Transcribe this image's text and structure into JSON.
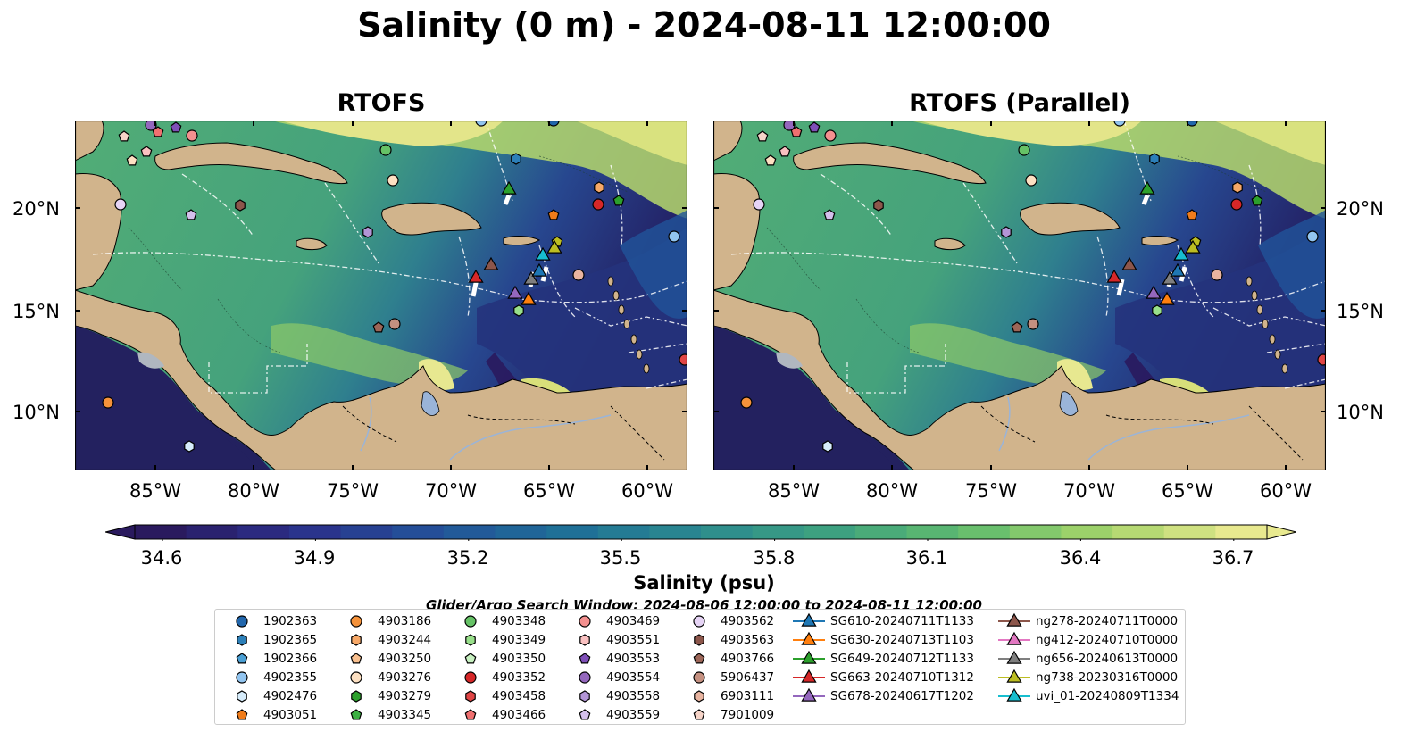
{
  "title": "Salinity (0 m) - 2024-08-11 12:00:00",
  "panels": [
    {
      "title": "RTOFS"
    },
    {
      "title": "RTOFS (Parallel)"
    }
  ],
  "axes": {
    "lat_labels": [
      "20°N",
      "15°N",
      "10°N"
    ],
    "lon_labels": [
      "85°W",
      "80°W",
      "75°W",
      "70°W",
      "65°W",
      "60°W"
    ]
  },
  "colorbar": {
    "label": "Salinity (psu)",
    "ticks": [
      "34.6",
      "34.9",
      "35.2",
      "35.5",
      "35.8",
      "36.1",
      "36.4",
      "36.7"
    ],
    "colors": [
      "#2a1a5e",
      "#2b2f8a",
      "#23519a",
      "#1e6f97",
      "#2b8a8f",
      "#3ea27f",
      "#63bd6d",
      "#a6d46a",
      "#e8e98f"
    ]
  },
  "search_window": "Glider/Argo Search Window: 2024-08-06 12:00:00 to 2024-08-11 12:00:00",
  "colors": {
    "ocean_mid": "#3e9a7c",
    "ocean_low": "#23215f",
    "ocean_high": "#e6e68a",
    "land": "#d1b48c",
    "river": "#9ab4d8"
  },
  "legend": {
    "columns": [
      [
        {
          "label": "1902363",
          "marker": "circle",
          "color": "#2166ac"
        },
        {
          "label": "1902365",
          "marker": "hexagon",
          "color": "#2c7fb8"
        },
        {
          "label": "1902366",
          "marker": "pentagon",
          "color": "#4a9fd4"
        },
        {
          "label": "4902355",
          "marker": "circle",
          "color": "#92c5f0"
        },
        {
          "label": "4902476",
          "marker": "hexagon",
          "color": "#d6ecfb"
        },
        {
          "label": "4903051",
          "marker": "pentagon",
          "color": "#f07c1a"
        }
      ],
      [
        {
          "label": "4903186",
          "marker": "circle",
          "color": "#f5923a"
        },
        {
          "label": "4903244",
          "marker": "hexagon",
          "color": "#f7a867"
        },
        {
          "label": "4903250",
          "marker": "pentagon",
          "color": "#f9c08f"
        },
        {
          "label": "4903276",
          "marker": "circle",
          "color": "#fde0c2"
        },
        {
          "label": "4903279",
          "marker": "hexagon",
          "color": "#2ca02c"
        },
        {
          "label": "4903345",
          "marker": "pentagon",
          "color": "#3cb043"
        }
      ],
      [
        {
          "label": "4903348",
          "marker": "circle",
          "color": "#66c266"
        },
        {
          "label": "4903349",
          "marker": "hexagon",
          "color": "#98df8a"
        },
        {
          "label": "4903350",
          "marker": "pentagon",
          "color": "#c7f0c0"
        },
        {
          "label": "4903352",
          "marker": "circle",
          "color": "#d62728"
        },
        {
          "label": "4903458",
          "marker": "hexagon",
          "color": "#e04545"
        },
        {
          "label": "4903466",
          "marker": "pentagon",
          "color": "#f07070"
        }
      ],
      [
        {
          "label": "4903469",
          "marker": "circle",
          "color": "#f4908f"
        },
        {
          "label": "4903551",
          "marker": "hexagon",
          "color": "#f9c0c0"
        },
        {
          "label": "4903553",
          "marker": "pentagon",
          "color": "#7f4fb8"
        },
        {
          "label": "4903554",
          "marker": "circle",
          "color": "#9467bd"
        },
        {
          "label": "4903558",
          "marker": "hexagon",
          "color": "#b395d6"
        },
        {
          "label": "4903559",
          "marker": "pentagon",
          "color": "#d4c0ec"
        }
      ],
      [
        {
          "label": "4903562",
          "marker": "circle",
          "color": "#e6d4f5"
        },
        {
          "label": "4903563",
          "marker": "hexagon",
          "color": "#8c564b"
        },
        {
          "label": "4903766",
          "marker": "pentagon",
          "color": "#9c6658"
        },
        {
          "label": "5906437",
          "marker": "circle",
          "color": "#c49080"
        },
        {
          "label": "6903111",
          "marker": "hexagon",
          "color": "#e8b4a0"
        },
        {
          "label": "7901009",
          "marker": "pentagon",
          "color": "#f6d4c8"
        }
      ],
      [
        {
          "label": "SG610-20240711T1133",
          "marker": "triangle",
          "color": "#1f77b4"
        },
        {
          "label": "SG630-20240713T1103",
          "marker": "triangle",
          "color": "#ff7f0e"
        },
        {
          "label": "SG649-20240712T1133",
          "marker": "triangle",
          "color": "#2ca02c"
        },
        {
          "label": "SG663-20240710T1312",
          "marker": "triangle",
          "color": "#d62728"
        },
        {
          "label": "SG678-20240617T1202",
          "marker": "triangle",
          "color": "#9467bd"
        }
      ],
      [
        {
          "label": "ng278-20240711T0000",
          "marker": "triangle",
          "color": "#8c564b"
        },
        {
          "label": "ng412-20240710T0000",
          "marker": "triangle",
          "color": "#e377c2"
        },
        {
          "label": "ng656-20240613T0000",
          "marker": "triangle",
          "color": "#7f7f7f"
        },
        {
          "label": "ng738-20230316T0000",
          "marker": "triangle",
          "color": "#bcbd22"
        },
        {
          "label": "uvi_01-20240809T1334",
          "marker": "triangle",
          "color": "#17becf"
        }
      ]
    ]
  }
}
